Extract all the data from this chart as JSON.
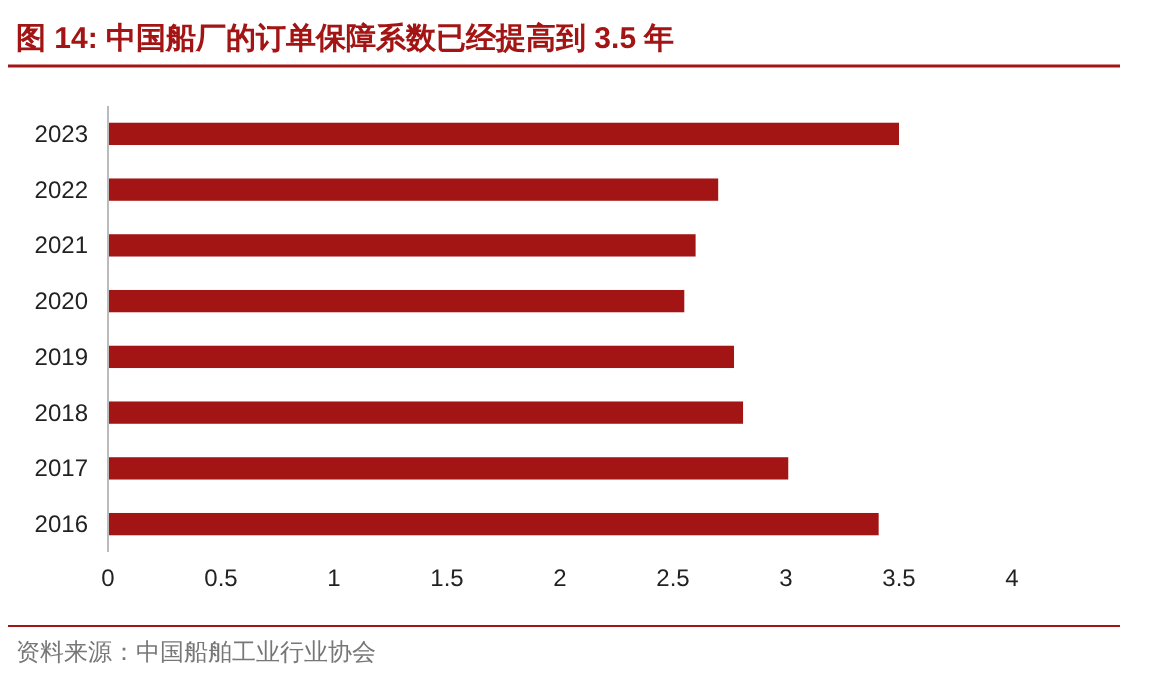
{
  "chart_data": {
    "type": "bar",
    "orientation": "horizontal",
    "title": "图 14:  中国船厂的订单保障系数已经提高到 3.5 年",
    "categories": [
      "2023",
      "2022",
      "2021",
      "2020",
      "2019",
      "2018",
      "2017",
      "2016"
    ],
    "values": [
      3.5,
      2.7,
      2.6,
      2.55,
      2.77,
      2.81,
      3.01,
      3.41
    ],
    "color": "#a31515",
    "xlim": [
      0,
      4
    ],
    "xticks": [
      0,
      0.5,
      1,
      1.5,
      2,
      2.5,
      3,
      3.5,
      4
    ],
    "grid": false,
    "annotations": [
      "资料来源：中国船舶工业行业协会"
    ]
  }
}
